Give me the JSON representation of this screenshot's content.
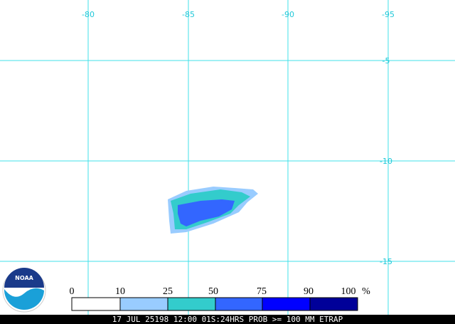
{
  "map": {
    "lon_labels": [
      "-80",
      "-85",
      "-90",
      "-95"
    ],
    "lat_labels": [
      "-5",
      "-10",
      "-15"
    ]
  },
  "logo": {
    "text": "NOAA"
  },
  "legend": {
    "labels": [
      "0",
      "10",
      "25",
      "50",
      "75",
      "90",
      "100"
    ],
    "unit": "%"
  },
  "footer": {
    "caption": "17 JUL 25198 12:00 01S:24HRS PROB >= 100 MM ETRAP"
  }
}
